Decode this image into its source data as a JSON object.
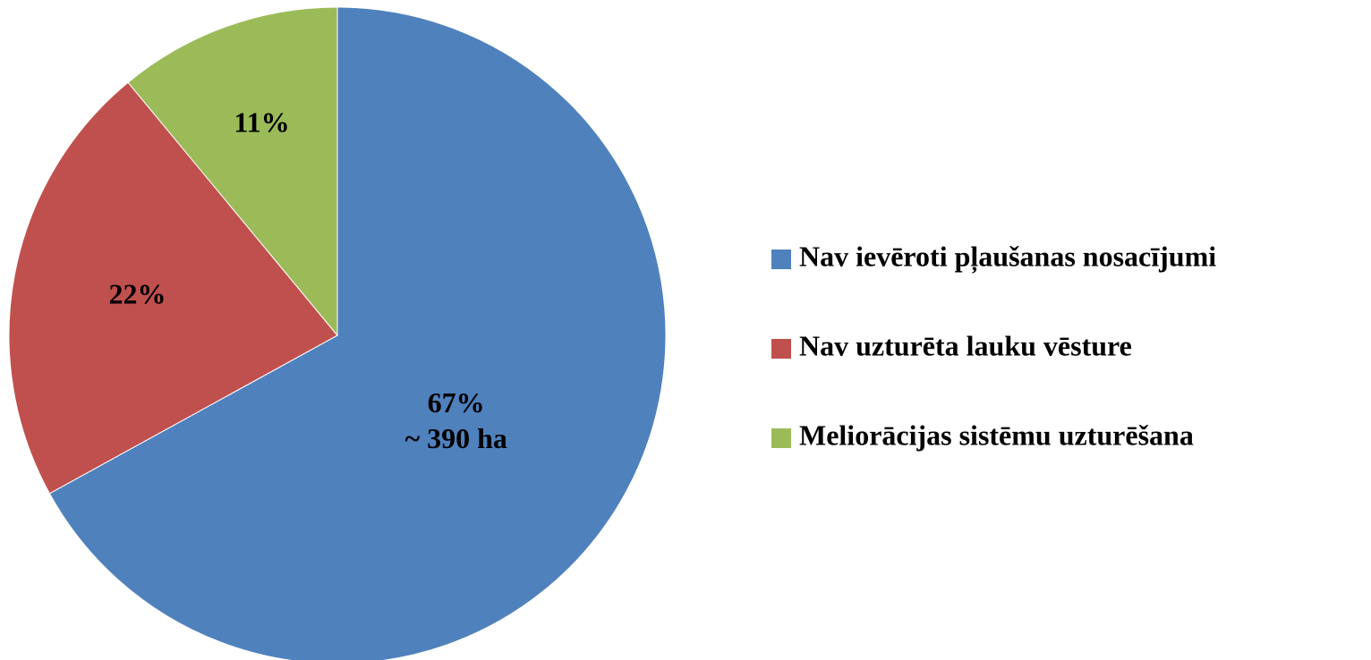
{
  "chart_data": {
    "type": "pie",
    "categories": [
      "Nav ievēroti pļaušanas nosacījumi",
      "Nav uzturēta lauku vēsture",
      "Meliorācijas sistēmu uzturēšana"
    ],
    "values": [
      67,
      22,
      11
    ],
    "value_labels": [
      "67%",
      "22%",
      "11%"
    ],
    "annotations": [
      "~ 390 ha"
    ],
    "colors": [
      "#4f81bd",
      "#c0504d",
      "#9bbb59"
    ],
    "legend": "right"
  }
}
